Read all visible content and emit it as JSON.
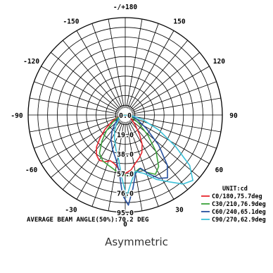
{
  "caption": "Asymmetric",
  "chart_data": {
    "type": "polar",
    "angle_ticks": [
      {
        "deg": 180,
        "label": "-/+180"
      },
      {
        "deg": 150,
        "label": "150"
      },
      {
        "deg": 120,
        "label": "120"
      },
      {
        "deg": 90,
        "label": "90"
      },
      {
        "deg": 60,
        "label": "60"
      },
      {
        "deg": 30,
        "label": "30"
      },
      {
        "deg": 0,
        "label": "0"
      },
      {
        "deg": -30,
        "label": "-30"
      },
      {
        "deg": -60,
        "label": "-60"
      },
      {
        "deg": -90,
        "label": "-90"
      },
      {
        "deg": -120,
        "label": "-120"
      },
      {
        "deg": -150,
        "label": "-150"
      }
    ],
    "radial_ticks": [
      {
        "value": 0.0,
        "label": "0.0"
      },
      {
        "value": 19.0,
        "label": "19.0"
      },
      {
        "value": 38.0,
        "label": "38.0"
      },
      {
        "value": 57.0,
        "label": "57.0"
      },
      {
        "value": 76.0,
        "label": "76.0"
      },
      {
        "value": 95.0,
        "label": "95.0"
      }
    ],
    "rmax": 95.0,
    "unit_label": "UNIT:cd",
    "avg_label": "AVERAGE BEAM ANGLE(50%):70.2 DEG",
    "series": [
      {
        "name": "C0/180,75.7deg",
        "color": "#e8262e",
        "points": [
          [
            -85,
            3
          ],
          [
            -75,
            7
          ],
          [
            -65,
            14
          ],
          [
            -55,
            24
          ],
          [
            -48,
            33
          ],
          [
            -42,
            42
          ],
          [
            -36,
            48
          ],
          [
            -30,
            51
          ],
          [
            -24,
            50
          ],
          [
            -18,
            47
          ],
          [
            -12,
            49
          ],
          [
            -6,
            54
          ],
          [
            0,
            57
          ],
          [
            6,
            54
          ],
          [
            12,
            48
          ],
          [
            18,
            44
          ],
          [
            24,
            40
          ],
          [
            30,
            33
          ],
          [
            36,
            24
          ],
          [
            45,
            14
          ],
          [
            55,
            8
          ],
          [
            65,
            4
          ],
          [
            80,
            2
          ]
        ]
      },
      {
        "name": "C30/210,76.9deg",
        "color": "#3aa23a",
        "points": [
          [
            -85,
            3
          ],
          [
            -70,
            8
          ],
          [
            -60,
            14
          ],
          [
            -50,
            24
          ],
          [
            -42,
            34
          ],
          [
            -34,
            45
          ],
          [
            -26,
            50
          ],
          [
            -18,
            52
          ],
          [
            -10,
            55
          ],
          [
            -3,
            58
          ],
          [
            3,
            60
          ],
          [
            9,
            57
          ],
          [
            15,
            54
          ],
          [
            21,
            60
          ],
          [
            27,
            65
          ],
          [
            33,
            60
          ],
          [
            40,
            47
          ],
          [
            48,
            30
          ],
          [
            58,
            16
          ],
          [
            70,
            8
          ],
          [
            85,
            3
          ]
        ]
      },
      {
        "name": "C60/240,65.1deg",
        "color": "#27509e",
        "points": [
          [
            -80,
            3
          ],
          [
            -65,
            7
          ],
          [
            -50,
            13
          ],
          [
            -40,
            20
          ],
          [
            -30,
            28
          ],
          [
            -20,
            36
          ],
          [
            -12,
            44
          ],
          [
            -6,
            56
          ],
          [
            -2,
            78
          ],
          [
            2,
            88
          ],
          [
            6,
            72
          ],
          [
            10,
            58
          ],
          [
            16,
            54
          ],
          [
            22,
            62
          ],
          [
            28,
            70
          ],
          [
            34,
            74
          ],
          [
            40,
            64
          ],
          [
            48,
            44
          ],
          [
            58,
            24
          ],
          [
            70,
            12
          ],
          [
            85,
            5
          ]
        ]
      },
      {
        "name": "C90/270,62.9deg",
        "color": "#3cc1d8",
        "points": [
          [
            -75,
            3
          ],
          [
            -60,
            7
          ],
          [
            -45,
            12
          ],
          [
            -35,
            18
          ],
          [
            -25,
            25
          ],
          [
            -15,
            35
          ],
          [
            -8,
            45
          ],
          [
            -3,
            62
          ],
          [
            1,
            80
          ],
          [
            5,
            66
          ],
          [
            10,
            56
          ],
          [
            18,
            60
          ],
          [
            26,
            70
          ],
          [
            34,
            79
          ],
          [
            40,
            88
          ],
          [
            46,
            92
          ],
          [
            52,
            80
          ],
          [
            58,
            58
          ],
          [
            66,
            36
          ],
          [
            75,
            18
          ],
          [
            85,
            6
          ]
        ]
      }
    ]
  }
}
